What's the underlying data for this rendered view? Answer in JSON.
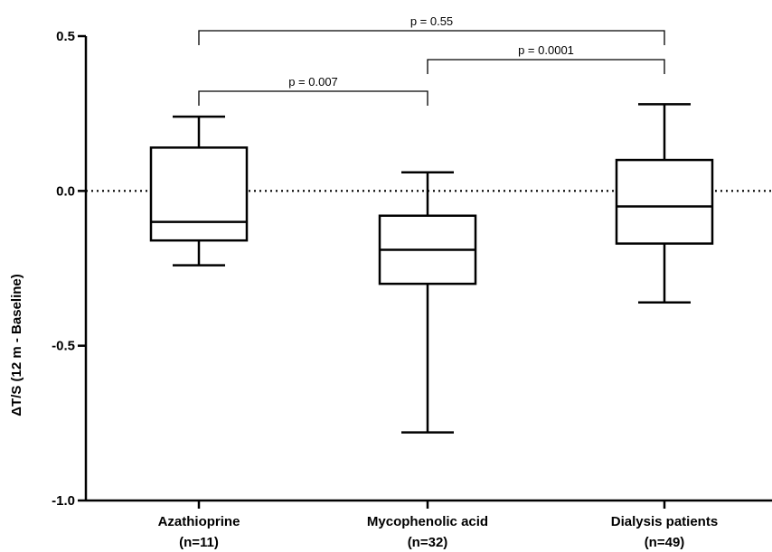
{
  "chart_data": {
    "type": "box",
    "ylabel": "ΔT/S (12 m - Baseline)",
    "xlabel": "",
    "ylim": [
      -1.0,
      0.5
    ],
    "yticks": [
      {
        "value": 0.5,
        "label": "0.5"
      },
      {
        "value": 0.0,
        "label": "0.0"
      },
      {
        "value": -0.5,
        "label": "-0.5"
      },
      {
        "value": -1.0,
        "label": "-1.0"
      }
    ],
    "reference_line": {
      "value": 0.0,
      "style": "dotted"
    },
    "categories": [
      {
        "name": "Azathioprine",
        "n_label": "(n=11)"
      },
      {
        "name": "Mycophenolic acid",
        "n_label": "(n=32)"
      },
      {
        "name": "Dialysis patients",
        "n_label": "(n=49)"
      }
    ],
    "boxes": [
      {
        "min": -0.24,
        "q1": -0.16,
        "median": -0.1,
        "q3": 0.14,
        "max": 0.24
      },
      {
        "min": -0.78,
        "q1": -0.3,
        "median": -0.19,
        "q3": -0.08,
        "max": 0.06
      },
      {
        "min": -0.36,
        "q1": -0.17,
        "median": -0.05,
        "q3": 0.1,
        "max": 0.28
      }
    ],
    "comparisons": [
      {
        "from": 0,
        "to": 1,
        "label": "p = 0.007",
        "level": 0
      },
      {
        "from": 1,
        "to": 2,
        "label": "p = 0.0001",
        "level": 1
      },
      {
        "from": 0,
        "to": 2,
        "label": "p = 0.55",
        "level": 2
      }
    ]
  }
}
